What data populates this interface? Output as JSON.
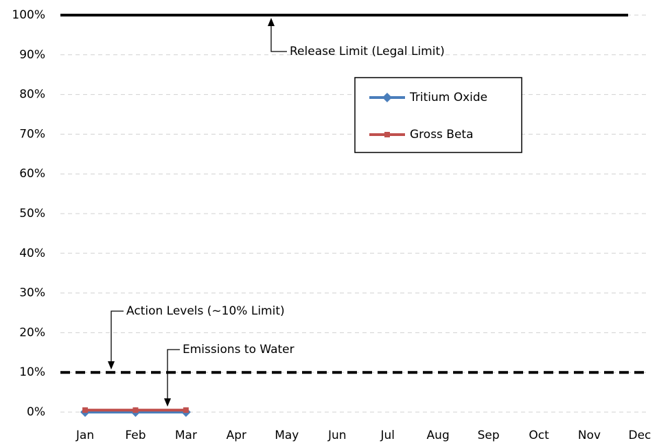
{
  "chart_data": {
    "type": "line",
    "categories": [
      "Jan",
      "Feb",
      "Mar",
      "Apr",
      "May",
      "Jun",
      "Jul",
      "Aug",
      "Sep",
      "Oct",
      "Nov",
      "Dec"
    ],
    "series": [
      {
        "name": "Tritium Oxide",
        "color": "#4a7ebb",
        "marker": "diamond",
        "values": [
          0,
          0,
          0,
          null,
          null,
          null,
          null,
          null,
          null,
          null,
          null,
          null
        ]
      },
      {
        "name": "Gross Beta",
        "color": "#c0504d",
        "marker": "square",
        "values": [
          0.5,
          0.5,
          0.5,
          null,
          null,
          null,
          null,
          null,
          null,
          null,
          null,
          null
        ]
      }
    ],
    "reference_lines": [
      {
        "value": 100,
        "style": "solid",
        "color": "#000000"
      },
      {
        "value": 10,
        "style": "dashed",
        "color": "#000000"
      }
    ],
    "annotations": [
      "Release Limit (Legal Limit)",
      "Action Levels (~10% Limit)",
      "Emissions to Water"
    ],
    "ylim": [
      0,
      100
    ],
    "yticks": [
      {
        "value": 0,
        "label": "0%"
      },
      {
        "value": 10,
        "label": "10%"
      },
      {
        "value": 20,
        "label": "20%"
      },
      {
        "value": 30,
        "label": "30%"
      },
      {
        "value": 40,
        "label": "40%"
      },
      {
        "value": 50,
        "label": "50%"
      },
      {
        "value": 60,
        "label": "60%"
      },
      {
        "value": 70,
        "label": "70%"
      },
      {
        "value": 80,
        "label": "80%"
      },
      {
        "value": 90,
        "label": "90%"
      },
      {
        "value": 100,
        "label": "100%"
      }
    ],
    "grid": true,
    "legend": "inside-top"
  }
}
